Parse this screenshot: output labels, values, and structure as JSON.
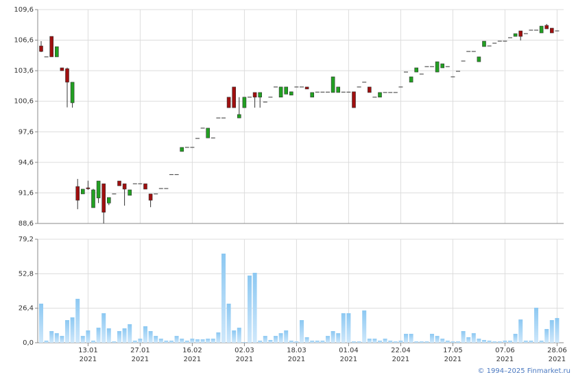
{
  "chart_data": [
    {
      "type": "candlestick",
      "up_color": "#22a022",
      "down_color": "#a00f0f",
      "edge_color": "#333333",
      "grid": true,
      "ylim": [
        88.6,
        109.6
      ],
      "yticks": [
        {
          "value": 88.6,
          "label": "88,6"
        },
        {
          "value": 91.6,
          "label": "91,6"
        },
        {
          "value": 94.6,
          "label": "94,6"
        },
        {
          "value": 97.6,
          "label": "97,6"
        },
        {
          "value": 100.6,
          "label": "100,6"
        },
        {
          "value": 103.6,
          "label": "103,6"
        },
        {
          "value": 106.6,
          "label": "106,6"
        },
        {
          "value": 109.6,
          "label": "109,6"
        }
      ],
      "open": [
        106.03,
        104.96,
        106.97,
        104.96,
        103.88,
        103.8,
        100.45,
        92.23,
        91.5,
        92.1,
        90.15,
        91.1,
        92.5,
        90.6,
        91.5,
        92.77,
        92.5,
        91.36,
        92.5,
        92.5,
        92.5,
        91.5,
        91.5,
        92.03,
        92.03,
        93.4,
        93.4,
        95.67,
        96.07,
        96.07,
        96.95,
        97.96,
        97.0,
        97.0,
        98.96,
        98.96,
        101.0,
        102.0,
        98.96,
        99.97,
        101.0,
        101.46,
        101.0,
        100.52,
        101.0,
        102.0,
        101.0,
        101.3,
        101.2,
        102.0,
        102.0,
        102.0,
        101.0,
        101.5,
        101.5,
        101.5,
        101.46,
        101.46,
        101.5,
        101.5,
        101.53,
        102.0,
        102.47,
        102.0,
        101.0,
        101.0,
        101.46,
        101.46,
        101.46,
        102.0,
        103.47,
        102.47,
        103.47,
        103.27,
        104.0,
        104.0,
        103.47,
        103.88,
        104.0,
        103.0,
        103.54,
        104.55,
        105.49,
        105.49,
        104.48,
        105.97,
        106.03,
        106.3,
        106.5,
        106.5,
        106.84,
        106.97,
        107.51,
        107.24,
        107.58,
        107.58,
        107.31,
        108.05,
        107.78,
        107.51
      ],
      "high": [
        106.5,
        104.96,
        106.97,
        105.96,
        103.88,
        103.9,
        102.47,
        92.97,
        91.97,
        92.8,
        92.0,
        92.77,
        92.5,
        91.15,
        91.5,
        92.77,
        92.5,
        91.9,
        92.5,
        92.5,
        92.5,
        91.5,
        91.5,
        92.03,
        92.03,
        93.4,
        93.4,
        96.07,
        96.07,
        96.07,
        96.95,
        97.96,
        97.96,
        97.0,
        98.96,
        98.96,
        101.0,
        102.0,
        101.0,
        101.0,
        101.0,
        101.46,
        101.46,
        100.52,
        101.0,
        102.0,
        102.0,
        102.0,
        101.53,
        102.0,
        102.0,
        102.0,
        101.46,
        101.5,
        101.5,
        101.5,
        103.0,
        102.0,
        101.5,
        101.5,
        101.53,
        102.0,
        102.47,
        102.0,
        101.0,
        101.46,
        101.46,
        101.46,
        101.46,
        102.0,
        103.47,
        103.0,
        103.88,
        103.27,
        104.0,
        104.0,
        104.48,
        104.28,
        104.0,
        103.0,
        103.54,
        104.55,
        105.49,
        105.49,
        104.96,
        106.5,
        106.03,
        106.3,
        106.5,
        106.5,
        106.84,
        107.24,
        107.51,
        107.24,
        107.58,
        107.58,
        107.98,
        108.19,
        107.78,
        107.51
      ],
      "low": [
        105.43,
        104.96,
        104.96,
        104.96,
        103.6,
        100.0,
        99.97,
        90.0,
        91.5,
        91.9,
        90.15,
        90.6,
        88.6,
        90.4,
        91.5,
        92.3,
        90.35,
        91.36,
        92.5,
        92.5,
        91.97,
        90.2,
        91.5,
        92.03,
        92.03,
        93.4,
        93.4,
        95.67,
        96.07,
        96.07,
        96.95,
        97.96,
        97.0,
        97.0,
        98.96,
        98.96,
        99.97,
        99.97,
        98.96,
        99.97,
        101.0,
        99.97,
        99.97,
        100.52,
        101.0,
        102.0,
        101.0,
        101.3,
        101.2,
        102.0,
        102.0,
        101.8,
        101.0,
        101.5,
        101.5,
        101.5,
        101.46,
        101.46,
        101.5,
        101.5,
        99.97,
        102.0,
        102.47,
        101.46,
        101.0,
        101.0,
        101.46,
        101.46,
        101.46,
        102.0,
        103.47,
        102.47,
        103.47,
        103.27,
        104.0,
        104.0,
        103.47,
        103.88,
        104.0,
        103.0,
        103.54,
        104.55,
        105.49,
        105.49,
        104.48,
        105.97,
        106.03,
        106.3,
        106.5,
        106.5,
        106.84,
        106.97,
        106.57,
        107.24,
        107.58,
        107.58,
        107.31,
        107.71,
        107.31,
        107.51
      ],
      "close": [
        105.49,
        104.96,
        104.96,
        105.96,
        103.6,
        102.47,
        102.47,
        90.88,
        91.97,
        92.0,
        91.9,
        92.77,
        89.7,
        91.15,
        91.5,
        92.3,
        91.97,
        91.9,
        92.5,
        92.5,
        91.97,
        90.88,
        91.5,
        92.03,
        92.03,
        93.4,
        93.4,
        96.07,
        96.07,
        96.07,
        96.95,
        97.96,
        97.96,
        97.0,
        98.96,
        98.96,
        99.97,
        99.97,
        99.3,
        101.0,
        101.0,
        101.0,
        101.46,
        100.52,
        101.0,
        102.0,
        102.0,
        102.0,
        101.53,
        102.0,
        102.0,
        101.8,
        101.46,
        101.5,
        101.5,
        101.5,
        103.0,
        102.0,
        101.5,
        101.5,
        99.97,
        102.0,
        102.47,
        101.46,
        101.0,
        101.46,
        101.46,
        101.46,
        101.46,
        102.0,
        103.47,
        103.0,
        103.88,
        103.27,
        104.0,
        104.0,
        104.48,
        104.28,
        104.0,
        103.0,
        103.54,
        104.55,
        105.49,
        105.49,
        104.96,
        106.5,
        106.03,
        106.3,
        106.5,
        106.5,
        106.84,
        107.24,
        106.97,
        107.24,
        107.58,
        107.58,
        107.98,
        107.71,
        107.31,
        107.51
      ]
    },
    {
      "type": "bar",
      "color": "#8cc8f2",
      "grid": true,
      "ylim": [
        0,
        79.2
      ],
      "yticks": [
        {
          "value": 0,
          "label": "0,0"
        },
        {
          "value": 26.4,
          "label": "26,4"
        },
        {
          "value": 52.8,
          "label": "52,8"
        },
        {
          "value": 79.2,
          "label": "79,2"
        }
      ],
      "categories": [
        null,
        null,
        null,
        null,
        null,
        null,
        null,
        null,
        null,
        "13.01",
        null,
        null,
        null,
        null,
        null,
        null,
        null,
        null,
        null,
        "27.01",
        null,
        null,
        null,
        null,
        null,
        null,
        null,
        null,
        null,
        "16.02",
        null,
        null,
        null,
        null,
        null,
        null,
        null,
        null,
        null,
        "02.03",
        null,
        null,
        null,
        null,
        null,
        null,
        null,
        null,
        null,
        "18.03",
        null,
        null,
        null,
        null,
        null,
        null,
        null,
        null,
        null,
        "01.04",
        null,
        null,
        null,
        null,
        null,
        null,
        null,
        null,
        null,
        "22.04",
        null,
        null,
        null,
        null,
        null,
        null,
        null,
        null,
        null,
        "17.05",
        null,
        null,
        null,
        null,
        null,
        null,
        null,
        null,
        null,
        "07.06",
        null,
        null,
        null,
        null,
        null,
        null,
        null,
        null,
        null,
        "28.06"
      ],
      "category_sublabels": [
        null,
        null,
        null,
        null,
        null,
        null,
        null,
        null,
        null,
        "2021",
        null,
        null,
        null,
        null,
        null,
        null,
        null,
        null,
        null,
        "2021",
        null,
        null,
        null,
        null,
        null,
        null,
        null,
        null,
        null,
        "2021",
        null,
        null,
        null,
        null,
        null,
        null,
        null,
        null,
        null,
        "2021",
        null,
        null,
        null,
        null,
        null,
        null,
        null,
        null,
        null,
        "2021",
        null,
        null,
        null,
        null,
        null,
        null,
        null,
        null,
        null,
        "2021",
        null,
        null,
        null,
        null,
        null,
        null,
        null,
        null,
        null,
        "2021",
        null,
        null,
        null,
        null,
        null,
        null,
        null,
        null,
        null,
        "2021",
        null,
        null,
        null,
        null,
        null,
        null,
        null,
        null,
        null,
        "2021",
        null,
        null,
        null,
        null,
        null,
        null,
        null,
        null,
        null,
        "2021"
      ],
      "values": [
        29.9,
        1.6,
        8.9,
        7.3,
        5.2,
        17.3,
        19.4,
        33.6,
        5.2,
        9.4,
        1.6,
        11.5,
        22.6,
        11.0,
        1.0,
        8.9,
        11.0,
        14.2,
        1.6,
        3.1,
        12.6,
        8.9,
        5.2,
        3.1,
        1.6,
        1.6,
        5.2,
        3.1,
        1.6,
        3.1,
        2.6,
        2.6,
        3.1,
        3.1,
        7.9,
        68.2,
        29.9,
        9.4,
        11.5,
        0.5,
        51.4,
        53.5,
        1.6,
        5.2,
        2.1,
        5.2,
        7.3,
        9.4,
        1.6,
        1.0,
        17.3,
        4.2,
        1.6,
        1.6,
        1.6,
        5.2,
        8.9,
        7.3,
        22.6,
        22.6,
        1.0,
        1.0,
        24.7,
        3.1,
        3.1,
        1.6,
        3.1,
        1.6,
        1.0,
        1.6,
        6.8,
        6.8,
        1.0,
        1.0,
        1.0,
        6.8,
        5.2,
        3.1,
        1.6,
        1.0,
        1.0,
        8.9,
        4.2,
        7.3,
        3.1,
        2.1,
        1.6,
        1.0,
        1.0,
        1.6,
        1.6,
        6.8,
        17.8,
        1.6,
        1.6,
        26.8,
        1.6,
        10.5,
        17.3,
        18.9
      ],
      "footer": "© 1994–2025 Finmarket.ru"
    }
  ]
}
